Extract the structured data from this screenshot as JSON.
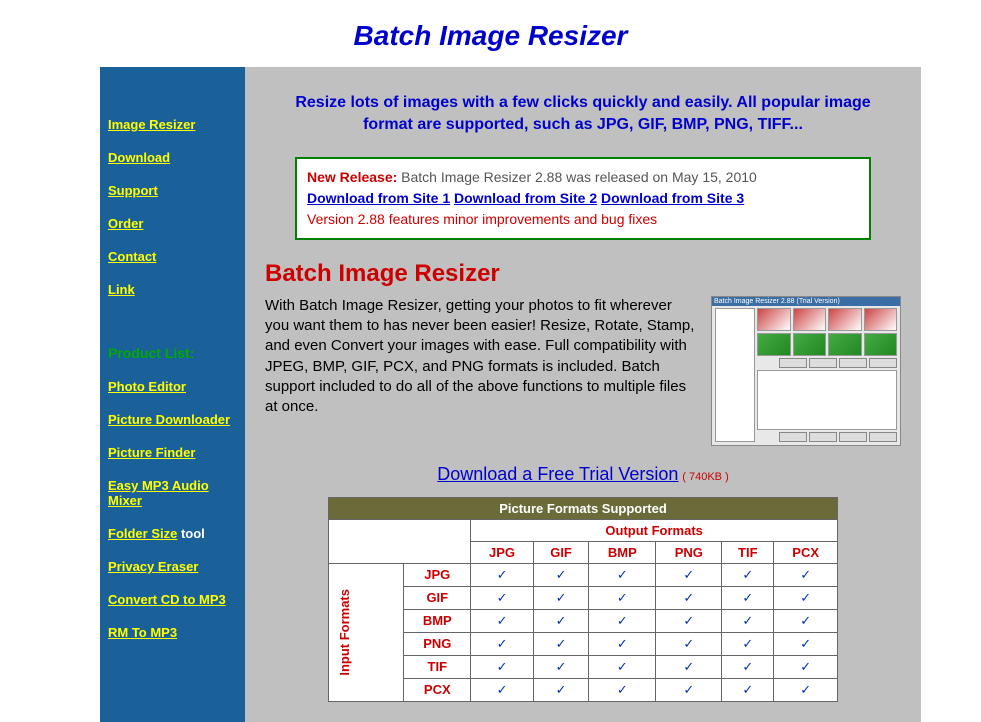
{
  "page_title": "Batch Image Resizer",
  "tagline": "Resize lots of images with a few clicks quickly and easily. All popular image format are supported, such as JPG, GIF, BMP, PNG, TIFF...",
  "sidebar": {
    "main_nav": [
      "Image Resizer",
      "Download",
      "Support",
      "Order",
      "Contact",
      "Link"
    ],
    "product_list_label": "Product List:",
    "products": [
      "Photo Editor",
      "Picture Downloader",
      "Picture Finder",
      "Easy MP3 Audio Mixer"
    ],
    "folder_size_link": "Folder Size",
    "folder_size_suffix": " tool",
    "products2": [
      "Privacy Eraser",
      "Convert CD to MP3",
      "RM To MP3"
    ]
  },
  "release": {
    "label": "New Release: ",
    "text": "Batch Image Resizer 2.88 was released on May 15, 2010",
    "links": [
      "Download from Site 1",
      "Download from Site 2",
      "Download from Site 3"
    ],
    "notes": "Version 2.88 features minor improvements and bug fixes"
  },
  "section_title": "Batch Image Resizer",
  "description": "With Batch Image Resizer, getting your photos to fit wherever you want them to has never been easier! Resize, Rotate, Stamp, and even Convert your images with ease. Full compatibility with JPEG, BMP, GIF, PCX, and PNG formats is included. Batch support included to do all of the above functions to multiple files at once.",
  "trial": {
    "link": "Download a Free Trial Version",
    "size": "( 740KB )"
  },
  "formats_table": {
    "title": "Picture Formats Supported",
    "output_label": "Output Formats",
    "input_label": "Input Formats",
    "columns": [
      "JPG",
      "GIF",
      "BMP",
      "PNG",
      "TIF",
      "PCX"
    ],
    "rows": [
      "JPG",
      "GIF",
      "BMP",
      "PNG",
      "TIF",
      "PCX"
    ],
    "check": "✓"
  }
}
